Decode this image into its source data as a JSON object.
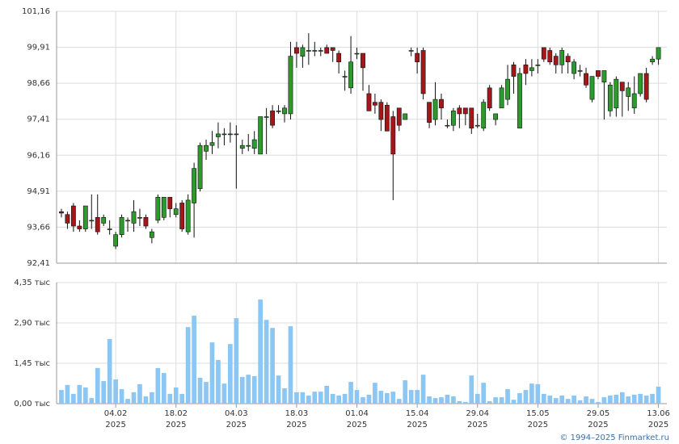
{
  "chart_data": [
    {
      "type": "candlestick",
      "open": [
        94.2,
        94.1,
        94.4,
        93.7,
        93.6,
        93.9,
        94.0,
        93.8,
        93.6,
        93.0,
        93.4,
        93.9,
        93.8,
        94.0,
        94.0,
        93.3,
        93.9,
        94.0,
        94.7,
        94.1,
        94.5,
        93.5,
        94.5,
        95.0,
        96.3,
        96.5,
        96.8,
        96.9,
        96.9,
        96.9,
        96.4,
        96.5,
        96.4,
        96.2,
        97.5,
        97.7,
        97.7,
        97.6,
        97.6,
        99.9,
        99.6,
        99.8,
        99.8,
        99.8,
        99.9,
        99.9,
        99.7,
        98.9,
        98.5,
        99.7,
        99.7,
        98.3,
        98.0,
        98.0,
        97.9,
        97.5,
        97.8,
        97.4,
        99.8,
        99.7,
        99.8,
        98.0,
        97.4,
        98.1,
        97.2,
        97.2,
        97.8,
        97.8,
        97.8,
        97.2,
        97.1,
        98.5,
        97.4,
        97.8,
        98.1,
        99.3,
        97.1,
        99.3,
        99.1,
        99.3,
        99.9,
        99.8,
        99.6,
        99.3,
        99.6,
        99.0,
        99.1,
        99.0,
        98.1,
        99.1,
        98.7,
        97.7,
        97.8,
        98.7,
        98.2,
        97.8,
        98.3,
        99.0,
        99.4,
        99.5
      ],
      "high": [
        94.3,
        94.2,
        94.5,
        93.9,
        94.4,
        94.8,
        94.8,
        94.1,
        93.9,
        93.5,
        94.1,
        94.0,
        94.6,
        94.3,
        94.1,
        93.6,
        94.8,
        94.7,
        94.7,
        94.5,
        94.6,
        94.8,
        95.9,
        96.6,
        96.7,
        97.0,
        97.3,
        97.1,
        97.3,
        97.2,
        96.7,
        96.9,
        97.0,
        97.5,
        97.8,
        97.9,
        97.9,
        97.9,
        100.1,
        100.1,
        100.0,
        100.4,
        100.1,
        99.9,
        100.0,
        99.9,
        99.8,
        99.1,
        100.3,
        99.9,
        99.7,
        98.6,
        98.3,
        98.1,
        98.0,
        97.7,
        97.8,
        97.6,
        99.9,
        99.9,
        99.9,
        98.0,
        98.7,
        98.3,
        97.4,
        97.8,
        97.9,
        97.8,
        97.8,
        97.6,
        98.1,
        98.6,
        97.6,
        98.6,
        99.3,
        99.4,
        99.2,
        99.5,
        99.5,
        99.5,
        99.9,
        99.9,
        99.7,
        99.9,
        99.7,
        99.5,
        99.3,
        99.2,
        98.9,
        99.1,
        99.1,
        98.7,
        98.9,
        98.7,
        98.7,
        98.9,
        99.0,
        99.2,
        99.6,
        99.9
      ],
      "low": [
        94.0,
        93.6,
        93.5,
        93.5,
        93.5,
        93.6,
        93.4,
        93.7,
        93.4,
        92.9,
        93.3,
        93.5,
        93.5,
        93.7,
        93.6,
        93.1,
        93.8,
        93.9,
        94.0,
        94.0,
        93.5,
        93.4,
        93.3,
        94.9,
        96.0,
        96.2,
        96.4,
        96.5,
        96.6,
        95.0,
        96.2,
        96.3,
        96.2,
        96.2,
        96.2,
        97.1,
        97.6,
        97.3,
        97.4,
        99.2,
        99.2,
        99.3,
        99.6,
        99.6,
        99.7,
        99.4,
        99.0,
        98.4,
        98.3,
        99.5,
        98.4,
        97.7,
        97.6,
        97.0,
        97.0,
        94.6,
        97.0,
        97.4,
        99.6,
        99.0,
        98.1,
        97.1,
        97.2,
        97.4,
        97.1,
        97.0,
        97.1,
        97.2,
        96.9,
        97.1,
        97.0,
        97.7,
        97.2,
        97.8,
        97.9,
        98.3,
        97.1,
        98.6,
        98.9,
        99.0,
        99.4,
        99.3,
        99.0,
        99.0,
        99.0,
        98.8,
        98.9,
        98.5,
        98.0,
        98.8,
        97.4,
        97.5,
        97.5,
        97.5,
        97.7,
        97.6,
        98.2,
        98.0,
        99.3,
        99.3
      ],
      "close": [
        94.15,
        93.8,
        93.7,
        93.6,
        94.4,
        93.9,
        93.5,
        94.0,
        93.6,
        93.4,
        94.0,
        93.9,
        94.2,
        94.0,
        93.7,
        93.5,
        94.7,
        94.7,
        94.3,
        94.3,
        93.6,
        94.6,
        95.7,
        96.5,
        96.5,
        96.6,
        96.9,
        96.9,
        96.9,
        96.9,
        96.5,
        96.5,
        96.7,
        97.5,
        97.5,
        97.2,
        97.7,
        97.8,
        99.6,
        99.7,
        99.9,
        99.8,
        99.8,
        99.8,
        99.7,
        99.8,
        99.4,
        98.9,
        99.4,
        99.7,
        99.2,
        97.7,
        97.9,
        97.4,
        97.0,
        96.2,
        97.2,
        97.6,
        99.8,
        99.4,
        98.3,
        97.3,
        98.1,
        97.8,
        97.2,
        97.7,
        97.6,
        97.6,
        97.1,
        97.2,
        98.0,
        97.8,
        97.6,
        98.5,
        98.8,
        98.9,
        99.0,
        99.0,
        99.2,
        99.3,
        99.5,
        99.4,
        99.3,
        99.8,
        99.4,
        99.4,
        99.1,
        98.6,
        98.9,
        98.9,
        99.1,
        98.6,
        98.8,
        98.4,
        98.5,
        98.3,
        99.0,
        98.1,
        99.5,
        99.9
      ],
      "up_color": "#2e9a2e",
      "down_color": "#a3161a",
      "wick_color": "#111",
      "xlim": [
        -0.8,
        100.4
      ],
      "ylim": [
        92.41,
        101.16
      ],
      "yticks": [
        {
          "value": 92.41,
          "label": "92,41"
        },
        {
          "value": 93.66,
          "label": "93,66"
        },
        {
          "value": 94.91,
          "label": "94,91"
        },
        {
          "value": 96.16,
          "label": "96,16"
        },
        {
          "value": 97.41,
          "label": "97,41"
        },
        {
          "value": 98.66,
          "label": "98,66"
        },
        {
          "value": 99.91,
          "label": "99,91"
        },
        {
          "value": 101.16,
          "label": "101,16"
        }
      ],
      "grid": true
    },
    {
      "type": "bar",
      "values": [
        0.49,
        0.67,
        0.35,
        0.67,
        0.58,
        0.2,
        1.28,
        0.81,
        2.32,
        0.87,
        0.52,
        0.17,
        0.41,
        0.7,
        0.26,
        0.41,
        1.28,
        1.1,
        0.35,
        0.58,
        0.35,
        2.75,
        3.16,
        0.93,
        0.78,
        2.2,
        1.57,
        0.72,
        2.14,
        3.07,
        0.96,
        1.04,
        0.99,
        3.74,
        3.01,
        2.72,
        1.01,
        0.55,
        2.78,
        0.41,
        0.41,
        0.29,
        0.43,
        0.43,
        0.64,
        0.35,
        0.29,
        0.35,
        0.78,
        0.49,
        0.23,
        0.32,
        0.75,
        0.46,
        0.38,
        0.43,
        0.17,
        0.84,
        0.49,
        0.49,
        1.04,
        0.26,
        0.2,
        0.23,
        0.32,
        0.26,
        0.09,
        0.06,
        1.01,
        0.35,
        0.75,
        0.09,
        0.23,
        0.23,
        0.52,
        0.14,
        0.38,
        0.49,
        0.72,
        0.7,
        0.35,
        0.29,
        0.2,
        0.29,
        0.17,
        0.29,
        0.12,
        0.26,
        0.17,
        0.06,
        0.23,
        0.29,
        0.32,
        0.41,
        0.26,
        0.32,
        0.35,
        0.29,
        0.35,
        0.61
      ],
      "color": "#8cc6f2",
      "xlim": [
        -0.8,
        100.4
      ],
      "ylim": [
        0,
        4.35
      ],
      "yticks": [
        {
          "value": 0,
          "label": "0,00 тыс"
        },
        {
          "value": 1.45,
          "label": "1,45 тыс"
        },
        {
          "value": 2.9,
          "label": "2,90 тыс"
        },
        {
          "value": 4.35,
          "label": "4,35 тыс"
        }
      ],
      "xticks": [
        {
          "value": 9,
          "label": "04.02",
          "year": "2025"
        },
        {
          "value": 19,
          "label": "18.02",
          "year": "2025"
        },
        {
          "value": 29,
          "label": "04.03",
          "year": "2025"
        },
        {
          "value": 39,
          "label": "18.03",
          "year": "2025"
        },
        {
          "value": 49,
          "label": "01.04",
          "year": "2025"
        },
        {
          "value": 59,
          "label": "15.04",
          "year": "2025"
        },
        {
          "value": 69,
          "label": "29.04",
          "year": "2025"
        },
        {
          "value": 79,
          "label": "15.05",
          "year": "2025"
        },
        {
          "value": 89,
          "label": "29.05",
          "year": "2025"
        },
        {
          "value": 99,
          "label": "13.06",
          "year": "2025"
        }
      ],
      "grid": true
    }
  ],
  "footer": "© 1994–2025 Finmarket.ru"
}
